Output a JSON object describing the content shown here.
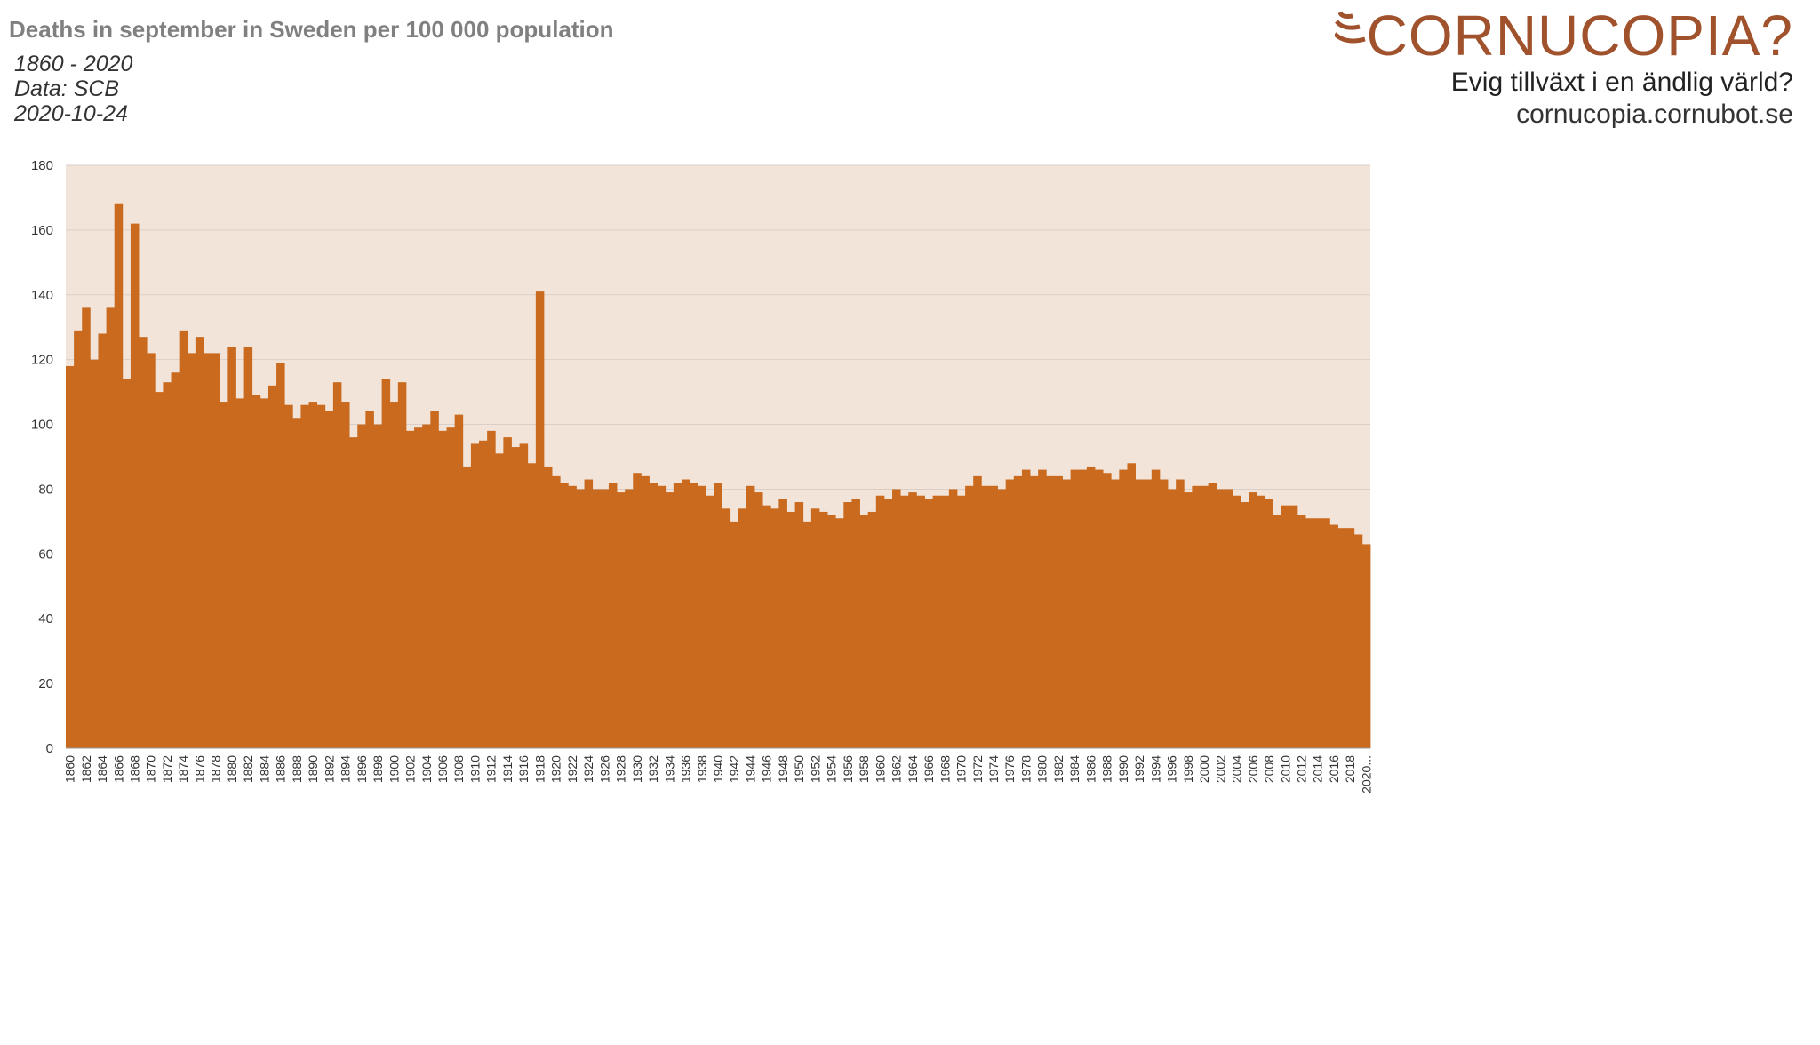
{
  "header": {
    "title": "Deaths in september in Sweden per 100 000 population",
    "range": "1860 - 2020",
    "source": "Data: SCB",
    "date": "2020-10-24"
  },
  "logo": {
    "word": "CORNUCOPIA?",
    "tagline": "Evig tillväxt i en ändlig värld?",
    "site": "cornucopia.cornubot.se"
  },
  "colors": {
    "bar": "#c96a1e",
    "plot_bg": "#f3e4d9",
    "grid": "#d9cfc8",
    "logo": "#a0522d"
  },
  "chart_data": {
    "type": "bar",
    "title": "Deaths in september in Sweden per 100 000 population",
    "xlabel": "",
    "ylabel": "",
    "ylim": [
      0,
      180
    ],
    "yticks": [
      0,
      20,
      40,
      60,
      80,
      100,
      120,
      140,
      160,
      180
    ],
    "grid": true,
    "x_start": 1860,
    "tick_labels_every": 2,
    "last_tick_label": "2020...",
    "categories": [
      1860,
      1861,
      1862,
      1863,
      1864,
      1865,
      1866,
      1867,
      1868,
      1869,
      1870,
      1871,
      1872,
      1873,
      1874,
      1875,
      1876,
      1877,
      1878,
      1879,
      1880,
      1881,
      1882,
      1883,
      1884,
      1885,
      1886,
      1887,
      1888,
      1889,
      1890,
      1891,
      1892,
      1893,
      1894,
      1895,
      1896,
      1897,
      1898,
      1899,
      1900,
      1901,
      1902,
      1903,
      1904,
      1905,
      1906,
      1907,
      1908,
      1909,
      1910,
      1911,
      1912,
      1913,
      1914,
      1915,
      1916,
      1917,
      1918,
      1919,
      1920,
      1921,
      1922,
      1923,
      1924,
      1925,
      1926,
      1927,
      1928,
      1929,
      1930,
      1931,
      1932,
      1933,
      1934,
      1935,
      1936,
      1937,
      1938,
      1939,
      1940,
      1941,
      1942,
      1943,
      1944,
      1945,
      1946,
      1947,
      1948,
      1949,
      1950,
      1951,
      1952,
      1953,
      1954,
      1955,
      1956,
      1957,
      1958,
      1959,
      1960,
      1961,
      1962,
      1963,
      1964,
      1965,
      1966,
      1967,
      1968,
      1969,
      1970,
      1971,
      1972,
      1973,
      1974,
      1975,
      1976,
      1977,
      1978,
      1979,
      1980,
      1981,
      1982,
      1983,
      1984,
      1985,
      1986,
      1987,
      1988,
      1989,
      1990,
      1991,
      1992,
      1993,
      1994,
      1995,
      1996,
      1997,
      1998,
      1999,
      2000,
      2001,
      2002,
      2003,
      2004,
      2005,
      2006,
      2007,
      2008,
      2009,
      2010,
      2011,
      2012,
      2013,
      2014,
      2015,
      2016,
      2017,
      2018,
      2019,
      2020
    ],
    "values": [
      118,
      129,
      136,
      120,
      128,
      136,
      168,
      114,
      162,
      127,
      122,
      110,
      113,
      116,
      129,
      122,
      127,
      122,
      122,
      107,
      124,
      108,
      124,
      109,
      108,
      112,
      119,
      106,
      102,
      106,
      107,
      106,
      104,
      113,
      107,
      96,
      100,
      104,
      100,
      114,
      107,
      113,
      98,
      99,
      100,
      104,
      98,
      99,
      103,
      87,
      94,
      95,
      98,
      91,
      96,
      93,
      94,
      88,
      141,
      87,
      84,
      82,
      81,
      80,
      83,
      80,
      80,
      82,
      79,
      80,
      85,
      84,
      82,
      81,
      79,
      82,
      83,
      82,
      81,
      78,
      82,
      74,
      70,
      74,
      81,
      79,
      75,
      74,
      77,
      73,
      76,
      70,
      74,
      73,
      72,
      71,
      76,
      77,
      72,
      73,
      78,
      77,
      80,
      78,
      79,
      78,
      77,
      78,
      78,
      80,
      78,
      81,
      84,
      81,
      81,
      80,
      83,
      84,
      86,
      84,
      86,
      84,
      84,
      83,
      86,
      86,
      87,
      86,
      85,
      83,
      86,
      88,
      83,
      83,
      86,
      83,
      80,
      83,
      79,
      81,
      81,
      82,
      80,
      80,
      78,
      76,
      79,
      78,
      77,
      72,
      75,
      75,
      72,
      71,
      71,
      71,
      69,
      68,
      68,
      66,
      63
    ]
  }
}
